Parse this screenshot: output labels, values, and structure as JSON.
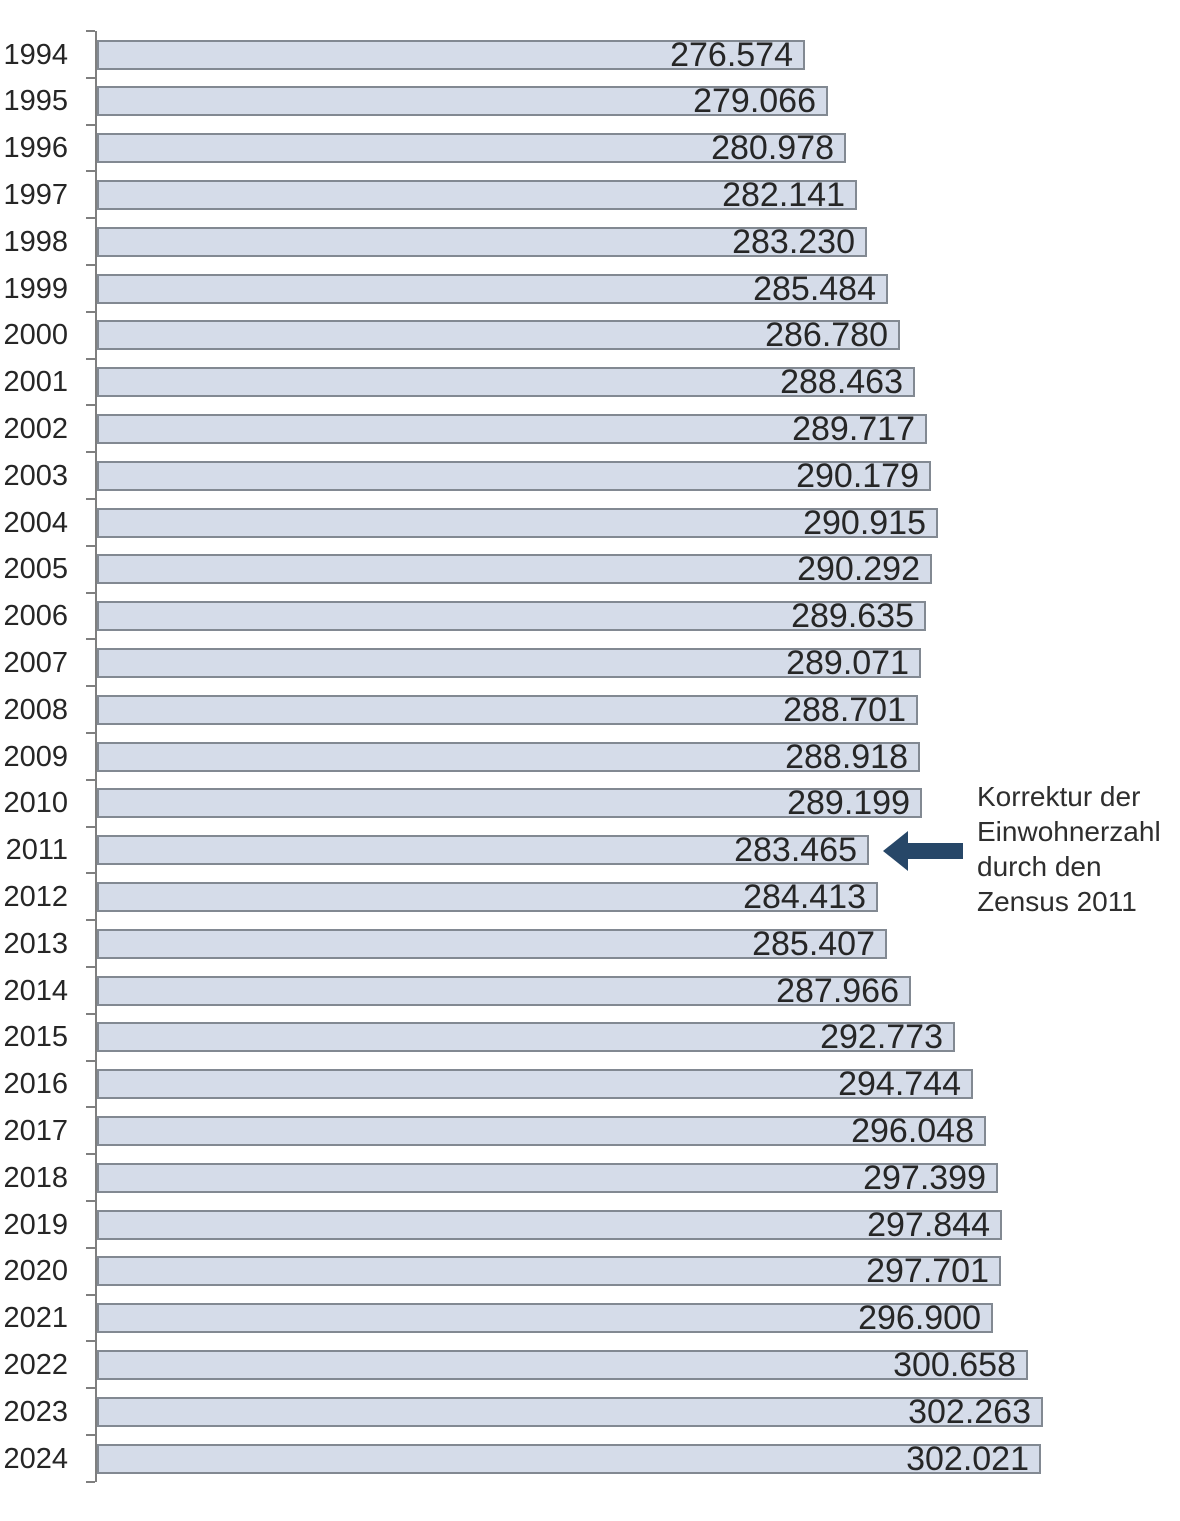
{
  "chart_data": {
    "type": "bar",
    "orientation": "horizontal",
    "title": "",
    "xlabel": "",
    "ylabel": "",
    "grid": false,
    "legend": false,
    "x_min": 200000,
    "x_ref_max": 302263,
    "categories": [
      "1994",
      "1995",
      "1996",
      "1997",
      "1998",
      "1999",
      "2000",
      "2001",
      "2002",
      "2003",
      "2004",
      "2005",
      "2006",
      "2007",
      "2008",
      "2009",
      "2010",
      "2011",
      "2012",
      "2013",
      "2014",
      "2015",
      "2016",
      "2017",
      "2018",
      "2019",
      "2020",
      "2021",
      "2022",
      "2023",
      "2024"
    ],
    "values": [
      276574,
      279066,
      280978,
      282141,
      283230,
      285484,
      286780,
      288463,
      289717,
      290179,
      290915,
      290292,
      289635,
      289071,
      288701,
      288918,
      289199,
      283465,
      284413,
      285407,
      287966,
      292773,
      294744,
      296048,
      297399,
      297844,
      297701,
      296900,
      300658,
      302263,
      302021
    ],
    "value_labels": [
      "276.574",
      "279.066",
      "280.978",
      "282.141",
      "283.230",
      "285.484",
      "286.780",
      "288.463",
      "289.717",
      "290.179",
      "290.915",
      "290.292",
      "289.635",
      "289.071",
      "288.701",
      "288.918",
      "289.199",
      "283.465",
      "284.413",
      "285.407",
      "287.966",
      "292.773",
      "294.744",
      "296.048",
      "297.399",
      "297.844",
      "297.701",
      "296.900",
      "300.658",
      "302.263",
      "302.021"
    ],
    "annotation": {
      "lines": [
        "Korrektur der",
        "Einwohnerzahl",
        "durch den",
        "Zensus 2011"
      ],
      "target_category": "2011",
      "arrow_icon": "left-block-arrow",
      "arrow_color": "#274768"
    },
    "colors": {
      "bar_fill": "#d5dce9",
      "bar_border": "#828992",
      "axis": "#7f7f7f",
      "label_text": "#262626",
      "annotation_text": "#2e2e2e"
    }
  }
}
